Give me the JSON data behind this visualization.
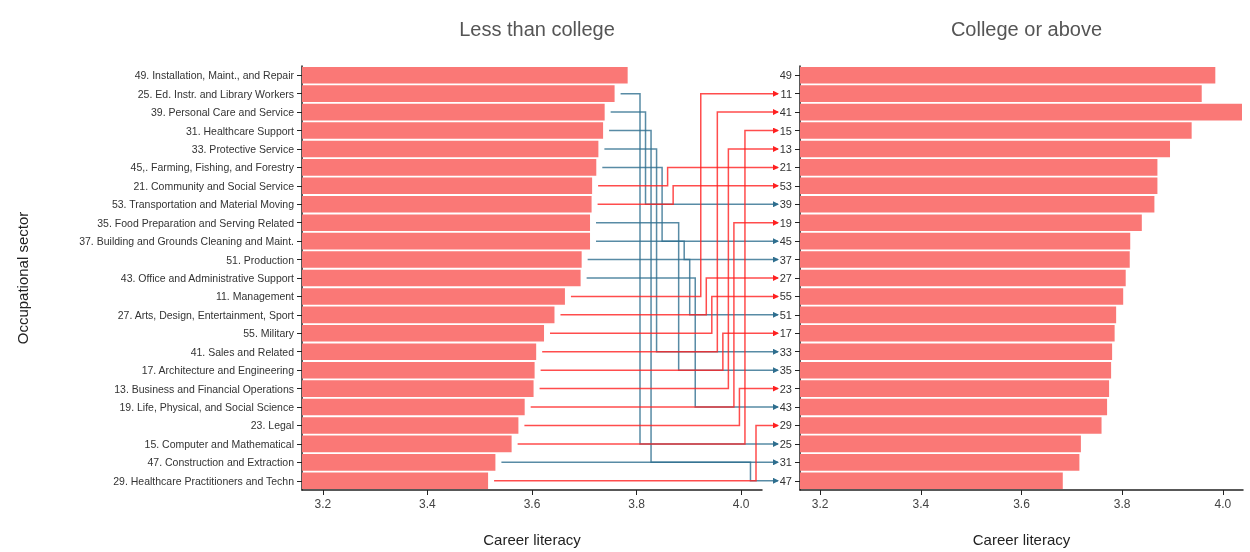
{
  "chart_data": [
    {
      "type": "bar",
      "orientation": "horizontal",
      "title": "Less than college",
      "xlabel": "Career literacy",
      "ylabel": "Occupational sector",
      "color": "#fa7876",
      "categories": [
        "49. Installation, Maint., and Repair",
        "25. Ed. Instr. and Library Workers",
        "39. Personal Care and Service",
        "31. Healthcare Support",
        "33. Protective Service",
        "45,. Farming, Fishing, and Forestry",
        "21. Community and Social Service",
        "53. Transportation and Material Moving",
        "35. Food Preparation and Serving Related",
        "37. Building and Grounds Cleaning and Maint.",
        "51. Production",
        "43. Office and Administrative Support",
        "11. Management",
        "27. Arts, Design, Entertainment, Sport",
        "55. Military",
        "41. Sales and Related",
        "17. Architecture and Engineering",
        "13. Business and Financial Operations",
        "19. Life, Physical, and Social Science",
        "23. Legal",
        "15. Computer and Mathematical",
        "47. Construction and Extraction",
        "29. Healthcare Practitioners and Techn"
      ],
      "values": [
        3.783,
        3.758,
        3.739,
        3.736,
        3.727,
        3.723,
        3.715,
        3.714,
        3.711,
        3.711,
        3.695,
        3.693,
        3.663,
        3.643,
        3.623,
        3.608,
        3.605,
        3.603,
        3.586,
        3.574,
        3.561,
        3.53,
        3.516
      ],
      "xlim": [
        3.16,
        4.04
      ],
      "xticks": [
        3.2,
        3.4,
        3.6,
        3.8,
        {
          "value": 4,
          "label": "4.0"
        }
      ]
    },
    {
      "type": "bar",
      "orientation": "horizontal",
      "title": "College or above",
      "xlabel": "Career literacy",
      "color": "#fa7876",
      "categories": [
        "49",
        "11",
        "41",
        "15",
        "13",
        "21",
        "53",
        "39",
        "19",
        "45",
        "37",
        "27",
        "55",
        "51",
        "17",
        "33",
        "35",
        "23",
        "43",
        "29",
        "25",
        "31",
        "47"
      ],
      "values": [
        3.985,
        3.958,
        4.038,
        3.938,
        3.895,
        3.87,
        3.87,
        3.864,
        3.839,
        3.816,
        3.815,
        3.807,
        3.802,
        3.788,
        3.785,
        3.78,
        3.778,
        3.774,
        3.77,
        3.759,
        3.718,
        3.715,
        3.682
      ],
      "xlim": [
        3.16,
        4.04
      ],
      "xticks": [
        3.2,
        3.4,
        3.6,
        3.8,
        {
          "value": 4,
          "label": "4.0"
        }
      ]
    }
  ]
}
